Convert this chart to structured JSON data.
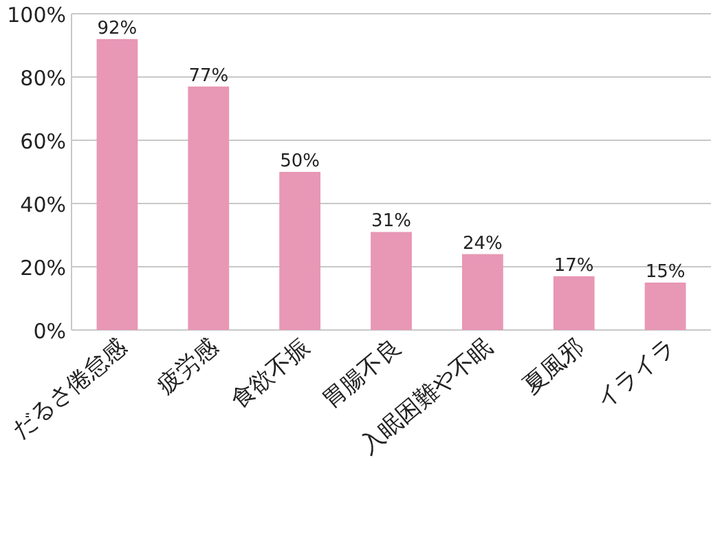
{
  "chart_data": {
    "type": "bar",
    "categories": [
      "だるさ倦怠感",
      "疲労感",
      "食欲不振",
      "胃腸不良",
      "入眠困難や不眠",
      "夏風邪",
      "イライラ"
    ],
    "values": [
      92,
      77,
      50,
      31,
      24,
      17,
      15
    ],
    "color": "#e897b5",
    "ylim": [
      0,
      100
    ],
    "yticks": [
      {
        "value": 0,
        "label": "0%"
      },
      {
        "value": 20,
        "label": "20%"
      },
      {
        "value": 40,
        "label": "40%"
      },
      {
        "value": 60,
        "label": "60%"
      },
      {
        "value": 80,
        "label": "80%"
      },
      {
        "value": 100,
        "label": "100%"
      }
    ],
    "value_labels": [
      "92%",
      "77%",
      "50%",
      "31%",
      "24%",
      "17%",
      "15%"
    ],
    "grid": "y"
  }
}
